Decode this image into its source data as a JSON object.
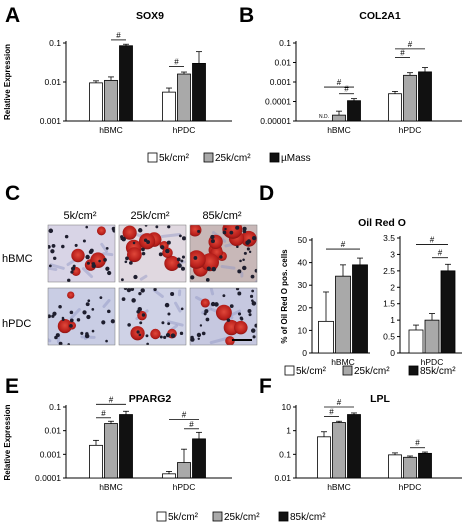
{
  "legend_items": [
    "5k/cm²",
    "25k/cm²",
    "85k/cm²"
  ],
  "legend_items_top": [
    "5k/cm²",
    "25k/cm²",
    "µMass"
  ],
  "colors": {
    "series1": "#ffffff",
    "series2": "#a9a9a9",
    "series3": "#111111"
  },
  "sig_mark": "#",
  "nd_mark": "N.D.",
  "chart_data": [
    {
      "id": "A",
      "type": "bar",
      "title": "SOX9",
      "ylabel": "Relative Expression",
      "scale": "log",
      "ylim": [
        0.001,
        0.1
      ],
      "yticks": [
        "0.1",
        "0.01",
        "0.001"
      ],
      "ytick_values": [
        0.1,
        0.01,
        0.001
      ],
      "categories": [
        "hBMC",
        "hPDC"
      ],
      "series": [
        {
          "values": [
            0.0095,
            0.0055
          ],
          "errors": [
            0.0012,
            0.0015
          ]
        },
        {
          "values": [
            0.011,
            0.016
          ],
          "errors": [
            0.0025,
            0.002
          ]
        },
        {
          "values": [
            0.085,
            0.03
          ],
          "errors": [
            0.008,
            0.03
          ]
        }
      ],
      "significance": [
        {
          "cat": 0,
          "from": 1,
          "to": 2,
          "level": 0.12
        },
        {
          "cat": 1,
          "from": 0,
          "to": 1,
          "level": 0.025
        }
      ]
    },
    {
      "id": "B",
      "type": "bar",
      "title": "COL2A1",
      "ylabel": "",
      "scale": "log",
      "ylim": [
        1e-05,
        0.1
      ],
      "yticks": [
        "0.1",
        "0.01",
        "0.001",
        "0.0001",
        "0.00001"
      ],
      "ytick_values": [
        0.1,
        0.01,
        0.001,
        0.0001,
        1e-05
      ],
      "categories": [
        "hBMC",
        "hPDC"
      ],
      "series": [
        {
          "values": [
            null,
            0.00025
          ],
          "errors": [
            null,
            8e-05
          ]
        },
        {
          "values": [
            2e-05,
            0.0022
          ],
          "errors": [
            1.2e-05,
            0.0008
          ]
        },
        {
          "values": [
            0.00011,
            0.0033
          ],
          "errors": [
            3e-05,
            0.0022
          ]
        }
      ],
      "not_detected": [
        {
          "cat": 0,
          "series": 0
        }
      ],
      "significance": [
        {
          "cat": 0,
          "from": 0,
          "to": 2,
          "level": 0.00055
        },
        {
          "cat": 0,
          "from": 1,
          "to": 2,
          "level": 0.00025
        },
        {
          "cat": 1,
          "from": 0,
          "to": 2,
          "level": 0.05
        },
        {
          "cat": 1,
          "from": 0,
          "to": 1,
          "level": 0.018
        }
      ]
    },
    {
      "id": "D1",
      "type": "bar",
      "title": "Oil Red O",
      "ylabel": "% of Oil Red O pos. cells",
      "scale": "linear",
      "ylim": [
        0,
        50
      ],
      "yticks": [
        "50",
        "40",
        "30",
        "20",
        "10",
        "0"
      ],
      "ytick_values": [
        50,
        40,
        30,
        20,
        10,
        0
      ],
      "categories": [
        "hBMC"
      ],
      "series": [
        {
          "values": [
            14
          ],
          "errors": [
            13
          ]
        },
        {
          "values": [
            34
          ],
          "errors": [
            5
          ]
        },
        {
          "values": [
            39
          ],
          "errors": [
            3
          ]
        }
      ],
      "significance": [
        {
          "cat": 0,
          "from": 0,
          "to": 2,
          "level": 46
        }
      ]
    },
    {
      "id": "D2",
      "type": "bar",
      "title": "",
      "ylabel": "",
      "scale": "linear",
      "ylim": [
        0,
        3.5
      ],
      "yticks": [
        "3.5",
        "3",
        "2.5",
        "2",
        "1.5",
        "1",
        "0.5",
        "0"
      ],
      "ytick_values": [
        3.5,
        3,
        2.5,
        2,
        1.5,
        1,
        0.5,
        0
      ],
      "categories": [
        "hPDC"
      ],
      "series": [
        {
          "values": [
            0.7
          ],
          "errors": [
            0.15
          ]
        },
        {
          "values": [
            1.0
          ],
          "errors": [
            0.2
          ]
        },
        {
          "values": [
            2.5
          ],
          "errors": [
            0.2
          ]
        }
      ],
      "significance": [
        {
          "cat": 0,
          "from": 0,
          "to": 2,
          "level": 3.3
        },
        {
          "cat": 0,
          "from": 1,
          "to": 2,
          "level": 2.9
        }
      ]
    },
    {
      "id": "E",
      "type": "bar",
      "title": "PPARG2",
      "ylabel": "Relative Expression",
      "scale": "log",
      "ylim": [
        0.0001,
        0.1
      ],
      "yticks": [
        "0.1",
        "0.01",
        "0.001",
        "0.0001"
      ],
      "ytick_values": [
        0.1,
        0.01,
        0.001,
        0.0001
      ],
      "categories": [
        "hBMC",
        "hPDC"
      ],
      "series": [
        {
          "values": [
            0.0024,
            0.00015
          ],
          "errors": [
            0.0015,
            4e-05
          ]
        },
        {
          "values": [
            0.02,
            0.00045
          ],
          "errors": [
            0.005,
            0.0012
          ]
        },
        {
          "values": [
            0.048,
            0.0045
          ],
          "errors": [
            0.018,
            0.004
          ]
        }
      ],
      "significance": [
        {
          "cat": 0,
          "from": 0,
          "to": 2,
          "level": 0.13
        },
        {
          "cat": 0,
          "from": 0,
          "to": 1,
          "level": 0.035
        },
        {
          "cat": 1,
          "from": 0,
          "to": 2,
          "level": 0.03
        },
        {
          "cat": 1,
          "from": 1,
          "to": 2,
          "level": 0.012
        }
      ]
    },
    {
      "id": "F",
      "type": "bar",
      "title": "LPL",
      "ylabel": "",
      "scale": "log",
      "ylim": [
        0.01,
        10
      ],
      "yticks": [
        "10",
        "1",
        "0.1",
        "0.01"
      ],
      "ytick_values": [
        10,
        1,
        0.1,
        0.01
      ],
      "categories": [
        "hBMC",
        "hPDC"
      ],
      "series": [
        {
          "values": [
            0.55,
            0.095
          ],
          "errors": [
            0.35,
            0.02
          ]
        },
        {
          "values": [
            2.2,
            0.075
          ],
          "errors": [
            0.3,
            0.01
          ]
        },
        {
          "values": [
            4.8,
            0.11
          ],
          "errors": [
            0.8,
            0.015
          ]
        }
      ],
      "significance": [
        {
          "cat": 0,
          "from": 0,
          "to": 2,
          "level": 10
        },
        {
          "cat": 0,
          "from": 0,
          "to": 1,
          "level": 4
        },
        {
          "cat": 1,
          "from": 1,
          "to": 2,
          "level": 0.19
        }
      ]
    }
  ],
  "panel_c": {
    "columns": [
      "5k/cm²",
      "25k/cm²",
      "85k/cm²"
    ],
    "rows": [
      "hBMC",
      "hPDC"
    ]
  }
}
